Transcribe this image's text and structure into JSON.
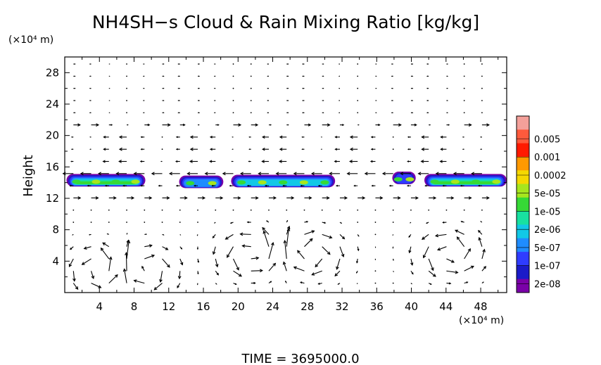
{
  "chart_data": {
    "type": "heatmap",
    "title": "NH4SH−s Cloud & Rain Mixing Ratio [kg/kg]",
    "xlabel": "",
    "ylabel": "Height",
    "x_unit": "(×10⁴ m)",
    "y_unit": "(×10⁴ m)",
    "xlim": [
      0,
      51
    ],
    "ylim": [
      0,
      30
    ],
    "xticks": [
      4,
      8,
      12,
      16,
      20,
      24,
      28,
      32,
      36,
      40,
      44,
      48
    ],
    "yticks": [
      4,
      8,
      12,
      16,
      20,
      24,
      28
    ],
    "footer": "TIME = 3695000.0",
    "colorbar": {
      "labels": [
        "0.005",
        "0.001",
        "0.0002",
        "5e-05",
        "1e-05",
        "2e-06",
        "5e-07",
        "1e-07",
        "2e-08"
      ],
      "colors": [
        "#f4a09a",
        "#ff5a3c",
        "#ff1a00",
        "#ff9900",
        "#f5d800",
        "#a6e61e",
        "#36d936",
        "#18e0a0",
        "#12c8e6",
        "#1f8cff",
        "#2f3cff",
        "#1b1bc8",
        "#7a00a8"
      ]
    },
    "cloud_patches": [
      {
        "x0": 0.2,
        "x1": 9.3,
        "y": 14.3,
        "level": 5
      },
      {
        "x0": 13.2,
        "x1": 18.3,
        "y": 14.1,
        "level": 2
      },
      {
        "x0": 19.2,
        "x1": 31.2,
        "y": 14.2,
        "level": 3
      },
      {
        "x0": 37.8,
        "x1": 40.5,
        "y": 14.6,
        "level": 1
      },
      {
        "x0": 41.5,
        "x1": 51.0,
        "y": 14.3,
        "level": 5
      }
    ],
    "vector_field": {
      "shear_height": 14.8,
      "circulation_centers": [
        [
          4.5,
          3.0
        ],
        [
          9.0,
          3.0
        ],
        [
          21.5,
          5.0
        ],
        [
          28.5,
          5.0
        ],
        [
          44.5,
          5.0
        ]
      ]
    }
  }
}
